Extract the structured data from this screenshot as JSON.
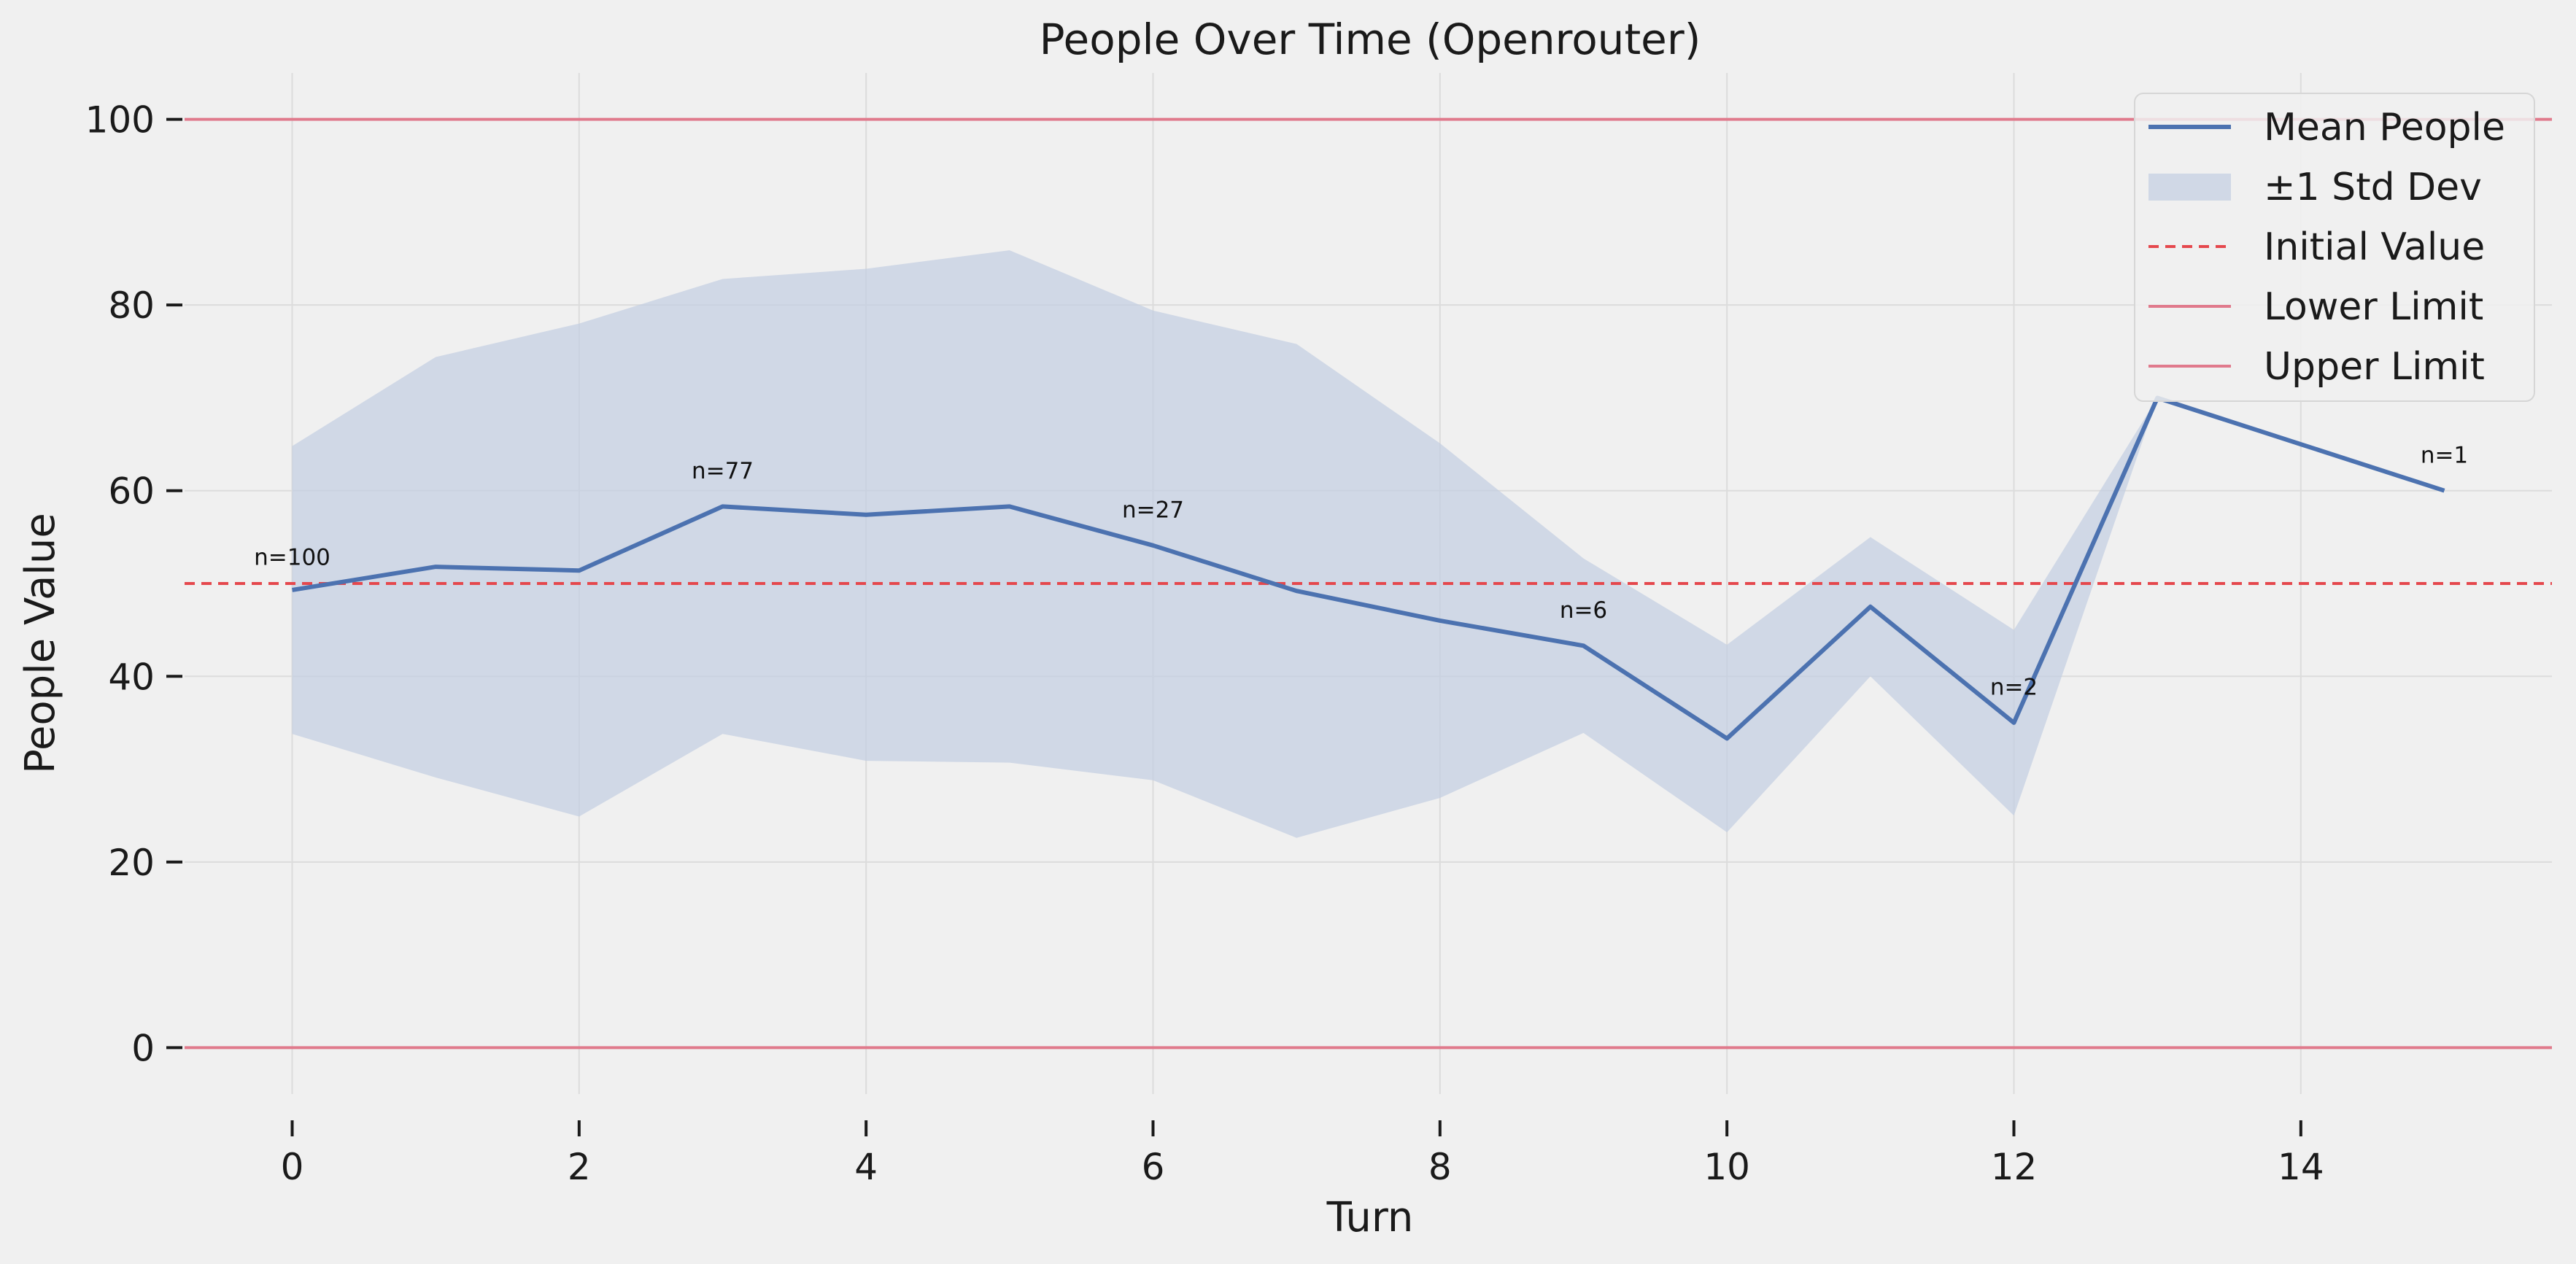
{
  "chart_data": {
    "type": "line",
    "title": "People Over Time (Openrouter)",
    "xlabel": "Turn",
    "ylabel": "People Value",
    "xlim": [
      -0.75,
      15.75
    ],
    "ylim": [
      -5,
      105
    ],
    "xticks": [
      0,
      2,
      4,
      6,
      8,
      10,
      12,
      14
    ],
    "yticks": [
      0,
      20,
      40,
      60,
      80,
      100
    ],
    "grid": true,
    "legend_position": "top-right",
    "x": [
      0,
      1,
      2,
      3,
      4,
      5,
      6,
      7,
      8,
      9,
      10,
      11,
      12,
      13,
      14,
      15
    ],
    "series": [
      {
        "name": "Mean People",
        "kind": "line",
        "color": "#4c72b0",
        "values": [
          49.3,
          51.8,
          51.4,
          58.3,
          57.4,
          58.3,
          54.1,
          49.2,
          46.0,
          43.3,
          33.3,
          47.5,
          35.0,
          70.0,
          65.0,
          60.0
        ]
      },
      {
        "name": "±1 Std Dev",
        "kind": "band",
        "color": "#c4cfe2",
        "lower": [
          33.8,
          29.1,
          24.9,
          33.8,
          30.9,
          30.7,
          28.8,
          22.6,
          26.9,
          33.9,
          23.2,
          40.0,
          25.0,
          70.0,
          65.0,
          60.0
        ],
        "upper": [
          64.8,
          74.4,
          78.0,
          82.8,
          83.9,
          85.9,
          79.4,
          75.8,
          65.1,
          52.7,
          43.4,
          55.0,
          45.0,
          70.0,
          65.0,
          60.0
        ]
      },
      {
        "name": "Initial Value",
        "kind": "hline",
        "style": "dashed",
        "color": "#e5484d",
        "value": 50
      },
      {
        "name": "Lower Limit",
        "kind": "hline",
        "style": "solid",
        "color": "#e07a8c",
        "value": 0
      },
      {
        "name": "Upper Limit",
        "kind": "hline",
        "style": "solid",
        "color": "#e07a8c",
        "value": 100
      }
    ],
    "annotations": [
      {
        "x": 0,
        "y": 52.0,
        "text": "n=100"
      },
      {
        "x": 3,
        "y": 61.3,
        "text": "n=77"
      },
      {
        "x": 6,
        "y": 57.1,
        "text": "n=27"
      },
      {
        "x": 9,
        "y": 46.3,
        "text": "n=6"
      },
      {
        "x": 12,
        "y": 38.0,
        "text": "n=2"
      },
      {
        "x": 15,
        "y": 63.0,
        "text": "n=1"
      }
    ]
  }
}
